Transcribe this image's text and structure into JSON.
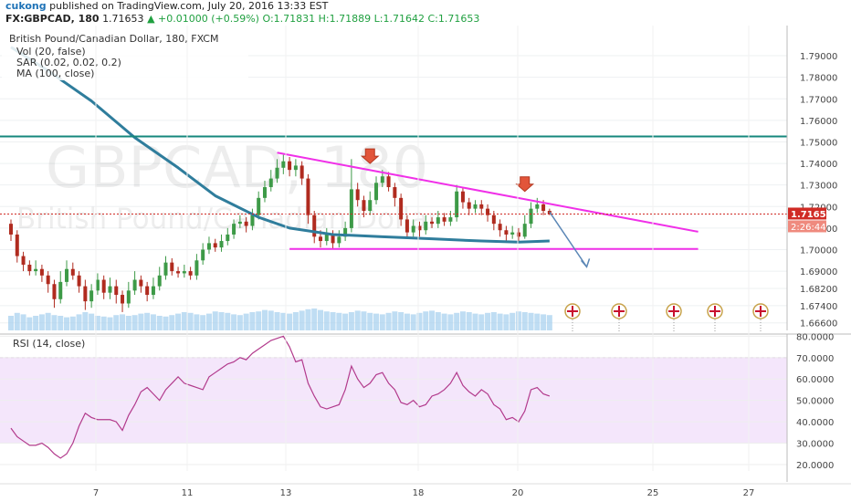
{
  "header": {
    "author": "cukong",
    "published_text": "published on TradingView.com, July 20, 2016 13:33 EST",
    "symbol": "FX:GBPCAD, 180",
    "last": "1.71653",
    "change": "+0.01000 (+0.59%)",
    "open": "O:1.71831",
    "high": "H:1.71889",
    "low": "L:1.71642",
    "close": "C:1.71653"
  },
  "watermark": {
    "symbol": "GBPCAD, 180",
    "name": "British Pound/Canadian Dollar"
  },
  "colors": {
    "up": "#3d9a47",
    "down": "#b02b1f",
    "ma": "#2f7d9c",
    "trend": "#f030e8",
    "resistance": "#15877c",
    "rsi_line": "#b23a8c",
    "rsi_band": "#f4e6fb",
    "volume": "#a9d2ef",
    "price_label": "#d02b25"
  },
  "chart_data": [
    {
      "type": "candlestick",
      "title": "British Pound/Canadian Dollar, 180, FXCM",
      "legend": [
        "Vol (20, false)",
        "SAR (0.02, 0.02, 0.2)",
        "MA (100, close)"
      ],
      "x_tick_labels": [
        "7",
        "11",
        "13",
        "18",
        "20",
        "25",
        "27"
      ],
      "y_tick_labels": [
        "1.79000",
        "1.78000",
        "1.77000",
        "1.76000",
        "1.75000",
        "1.74000",
        "1.73000",
        "1.72000",
        "1.71000",
        "1.70000",
        "1.69000",
        "1.68200",
        "1.67400",
        "1.66600"
      ],
      "ylim": [
        1.6625,
        1.804
      ],
      "last_price": "1.71653",
      "countdown": "2:26:44",
      "candles": [
        [
          1.712,
          1.707,
          1.714,
          1.704
        ],
        [
          1.707,
          1.697,
          1.709,
          1.694
        ],
        [
          1.697,
          1.693,
          1.699,
          1.69
        ],
        [
          1.693,
          1.69,
          1.695,
          1.688
        ],
        [
          1.69,
          1.691,
          1.695,
          1.688
        ],
        [
          1.691,
          1.688,
          1.693,
          1.685
        ],
        [
          1.688,
          1.684,
          1.69,
          1.68
        ],
        [
          1.684,
          1.677,
          1.686,
          1.673
        ],
        [
          1.677,
          1.685,
          1.69,
          1.675
        ],
        [
          1.685,
          1.691,
          1.695,
          1.683
        ],
        [
          1.691,
          1.688,
          1.694,
          1.686
        ],
        [
          1.688,
          1.683,
          1.69,
          1.68
        ],
        [
          1.683,
          1.676,
          1.686,
          1.672
        ],
        [
          1.676,
          1.681,
          1.684,
          1.673
        ],
        [
          1.681,
          1.686,
          1.689,
          1.679
        ],
        [
          1.686,
          1.68,
          1.688,
          1.677
        ],
        [
          1.68,
          1.683,
          1.687,
          1.677
        ],
        [
          1.683,
          1.679,
          1.686,
          1.675
        ],
        [
          1.679,
          1.675,
          1.681,
          1.671
        ],
        [
          1.675,
          1.681,
          1.685,
          1.673
        ],
        [
          1.681,
          1.686,
          1.69,
          1.679
        ],
        [
          1.686,
          1.683,
          1.688,
          1.68
        ],
        [
          1.683,
          1.679,
          1.685,
          1.676
        ],
        [
          1.679,
          1.683,
          1.687,
          1.677
        ],
        [
          1.683,
          1.688,
          1.692,
          1.681
        ],
        [
          1.688,
          1.694,
          1.697,
          1.686
        ],
        [
          1.694,
          1.69,
          1.696,
          1.688
        ],
        [
          1.69,
          1.689,
          1.692,
          1.687
        ],
        [
          1.689,
          1.69,
          1.693,
          1.687
        ],
        [
          1.69,
          1.688,
          1.692,
          1.686
        ],
        [
          1.688,
          1.695,
          1.698,
          1.686
        ],
        [
          1.695,
          1.7,
          1.703,
          1.693
        ],
        [
          1.7,
          1.703,
          1.706,
          1.698
        ],
        [
          1.703,
          1.701,
          1.705,
          1.699
        ],
        [
          1.701,
          1.704,
          1.707,
          1.699
        ],
        [
          1.704,
          1.707,
          1.71,
          1.702
        ],
        [
          1.707,
          1.712,
          1.714,
          1.705
        ],
        [
          1.712,
          1.713,
          1.716,
          1.71
        ],
        [
          1.713,
          1.711,
          1.715,
          1.708
        ],
        [
          1.711,
          1.716,
          1.719,
          1.709
        ],
        [
          1.716,
          1.724,
          1.727,
          1.714
        ],
        [
          1.724,
          1.729,
          1.732,
          1.722
        ],
        [
          1.729,
          1.733,
          1.737,
          1.727
        ],
        [
          1.733,
          1.738,
          1.742,
          1.731
        ],
        [
          1.738,
          1.741,
          1.744,
          1.735
        ],
        [
          1.741,
          1.737,
          1.743,
          1.734
        ],
        [
          1.737,
          1.739,
          1.742,
          1.734
        ],
        [
          1.739,
          1.733,
          1.741,
          1.73
        ],
        [
          1.733,
          1.716,
          1.735,
          1.712
        ],
        [
          1.716,
          1.706,
          1.718,
          1.703
        ],
        [
          1.706,
          1.704,
          1.709,
          1.701
        ],
        [
          1.704,
          1.707,
          1.71,
          1.702
        ],
        [
          1.707,
          1.703,
          1.709,
          1.7
        ],
        [
          1.703,
          1.706,
          1.709,
          1.701
        ],
        [
          1.706,
          1.71,
          1.713,
          1.704
        ],
        [
          1.71,
          1.728,
          1.742,
          1.708
        ],
        [
          1.728,
          1.723,
          1.731,
          1.72
        ],
        [
          1.723,
          1.718,
          1.725,
          1.715
        ],
        [
          1.718,
          1.723,
          1.727,
          1.716
        ],
        [
          1.723,
          1.731,
          1.734,
          1.721
        ],
        [
          1.731,
          1.734,
          1.737,
          1.729
        ],
        [
          1.734,
          1.729,
          1.736,
          1.727
        ],
        [
          1.729,
          1.724,
          1.731,
          1.72
        ],
        [
          1.724,
          1.714,
          1.726,
          1.711
        ],
        [
          1.714,
          1.708,
          1.716,
          1.705
        ],
        [
          1.708,
          1.711,
          1.714,
          1.706
        ],
        [
          1.711,
          1.709,
          1.713,
          1.706
        ],
        [
          1.709,
          1.713,
          1.716,
          1.707
        ],
        [
          1.713,
          1.712,
          1.715,
          1.71
        ],
        [
          1.712,
          1.715,
          1.718,
          1.71
        ],
        [
          1.715,
          1.713,
          1.717,
          1.711
        ],
        [
          1.713,
          1.715,
          1.718,
          1.711
        ],
        [
          1.715,
          1.727,
          1.73,
          1.713
        ],
        [
          1.727,
          1.722,
          1.729,
          1.719
        ],
        [
          1.722,
          1.719,
          1.724,
          1.716
        ],
        [
          1.719,
          1.721,
          1.723,
          1.717
        ],
        [
          1.721,
          1.719,
          1.723,
          1.716
        ],
        [
          1.719,
          1.716,
          1.721,
          1.713
        ],
        [
          1.716,
          1.712,
          1.718,
          1.709
        ],
        [
          1.712,
          1.709,
          1.714,
          1.706
        ],
        [
          1.709,
          1.707,
          1.711,
          1.704
        ],
        [
          1.707,
          1.708,
          1.711,
          1.705
        ],
        [
          1.708,
          1.706,
          1.71,
          1.704
        ],
        [
          1.706,
          1.712,
          1.716,
          1.705
        ],
        [
          1.712,
          1.719,
          1.722,
          1.71
        ],
        [
          1.719,
          1.721,
          1.724,
          1.717
        ],
        [
          1.721,
          1.718,
          1.723,
          1.716
        ],
        [
          1.718,
          1.71653,
          1.719,
          1.716
        ]
      ],
      "volume": [
        20,
        24,
        22,
        18,
        20,
        22,
        24,
        21,
        20,
        18,
        19,
        22,
        25,
        23,
        20,
        19,
        18,
        21,
        22,
        20,
        21,
        23,
        24,
        22,
        20,
        19,
        21,
        23,
        25,
        24,
        22,
        21,
        23,
        26,
        25,
        24,
        22,
        21,
        23,
        25,
        26,
        28,
        27,
        25,
        24,
        23,
        25,
        27,
        29,
        30,
        28,
        26,
        25,
        24,
        23,
        25,
        27,
        26,
        24,
        23,
        22,
        24,
        26,
        25,
        23,
        22,
        24,
        26,
        27,
        25,
        23,
        22,
        24,
        26,
        25,
        23,
        22,
        24,
        25,
        23,
        22,
        24,
        26,
        25,
        24,
        23,
        22,
        21
      ],
      "ma100": [
        [
          0,
          1.794
        ],
        [
          6,
          1.783
        ],
        [
          13,
          1.769
        ],
        [
          20,
          1.752
        ],
        [
          27,
          1.738
        ],
        [
          33,
          1.725
        ],
        [
          40,
          1.715
        ],
        [
          45,
          1.71
        ],
        [
          52,
          1.707
        ],
        [
          60,
          1.706
        ],
        [
          68,
          1.705
        ],
        [
          76,
          1.704
        ],
        [
          82,
          1.7035
        ],
        [
          87,
          1.704
        ]
      ],
      "drawings": {
        "resistance_level": 1.7525,
        "support_level": 1.7003,
        "descending_trendline": [
          [
            43,
            1.745
          ],
          [
            111,
            1.7083
          ]
        ],
        "projected_move": [
          [
            87,
            1.7175
          ],
          [
            93,
            1.692
          ]
        ],
        "sell_signals": [
          [
            58,
            1.74
          ],
          [
            83,
            1.727
          ]
        ]
      }
    },
    {
      "type": "line",
      "title": "RSI (14, close)",
      "y_tick_labels": [
        "80.0000",
        "70.0000",
        "60.0000",
        "50.0000",
        "40.0000",
        "30.0000",
        "20.0000"
      ],
      "ylim": [
        17,
        81
      ],
      "overbought": 70,
      "oversold": 30,
      "x_tick_labels": [
        "7",
        "11",
        "13",
        "18",
        "20",
        "25",
        "27"
      ],
      "values": [
        37,
        33,
        31,
        29,
        29,
        30,
        28,
        25,
        23,
        25,
        30,
        38,
        44,
        42,
        41,
        41,
        41,
        40,
        36,
        43,
        48,
        54,
        56,
        53,
        50,
        55,
        58,
        61,
        58,
        57,
        56,
        55,
        61,
        63,
        65,
        67,
        68,
        70,
        69,
        72,
        74,
        76,
        78,
        79,
        80,
        75,
        68,
        69,
        58,
        52,
        47,
        46,
        47,
        48,
        55,
        66,
        60,
        56,
        58,
        62,
        63,
        58,
        55,
        49,
        48,
        50,
        47,
        48,
        52,
        53,
        55,
        58,
        63,
        57,
        54,
        52,
        55,
        53,
        48,
        46,
        41,
        42,
        40,
        45,
        55,
        56,
        53,
        52
      ]
    }
  ]
}
